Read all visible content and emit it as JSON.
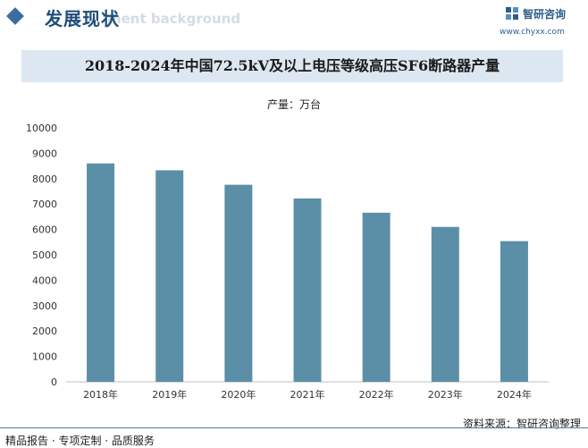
{
  "header": {
    "section_title": "发展现状",
    "background_text": "ment background",
    "brand_name": "智研咨询",
    "brand_url": "www.chyxx.com"
  },
  "chart_data": {
    "type": "bar",
    "title": "2018-2024年中国72.5kV及以上电压等级高压SF6断路器产量",
    "unit_label": "产量：万台",
    "categories": [
      "2018年",
      "2019年",
      "2020年",
      "2021年",
      "2022年",
      "2023年",
      "2024年"
    ],
    "values": [
      8600,
      8330,
      7760,
      7220,
      6660,
      6100,
      5540
    ],
    "ylim": [
      0,
      10000
    ],
    "yticks": [
      0,
      1000,
      2000,
      3000,
      4000,
      5000,
      6000,
      7000,
      8000,
      9000,
      10000
    ],
    "xlabel": "",
    "ylabel": "",
    "bar_color": "#5b8fa8",
    "grid": false,
    "legend": "none"
  },
  "footer": {
    "left": "精品报告 · 专项定制 · 品质服务",
    "source": "资料来源：智研咨询整理"
  }
}
